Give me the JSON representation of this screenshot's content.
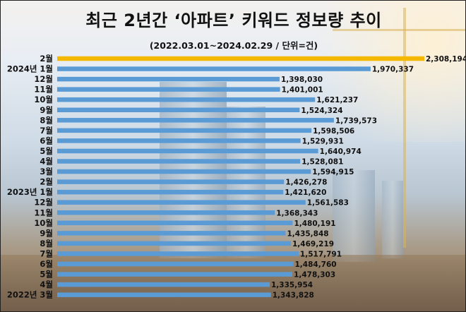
{
  "title": "최근 2년간 ‘아파트’ 키워드 정보량 추이",
  "subtitle": "(2022.03.01~2024.02.29 / 단위=건)",
  "colors": {
    "bar": "#5b9bd5",
    "highlight": "#f5b800"
  },
  "chart_data": {
    "type": "bar",
    "orientation": "horizontal",
    "title": "최근 2년간 ‘아파트’ 키워드 정보량 추이",
    "subtitle": "(2022.03.01~2024.02.29 / 단위=건)",
    "xlabel": "",
    "ylabel": "",
    "categories": [
      "2월",
      "2024년 1월",
      "12월",
      "11월",
      "10월",
      "9월",
      "8월",
      "7월",
      "6월",
      "5월",
      "4월",
      "3월",
      "2월",
      "2023년 1월",
      "12월",
      "11월",
      "10월",
      "9월",
      "8월",
      "7월",
      "6월",
      "5월",
      "4월",
      "2022년 3월"
    ],
    "values": [
      2308194,
      1970337,
      1398030,
      1401001,
      1621237,
      1524324,
      1739573,
      1598506,
      1529931,
      1640974,
      1528081,
      1594915,
      1426278,
      1421620,
      1561583,
      1368343,
      1480191,
      1435848,
      1469219,
      1517791,
      1484760,
      1478303,
      1335954,
      1343828
    ],
    "value_labels": [
      "2,308,194",
      "1,970,337",
      "1,398,030",
      "1,401,001",
      "1,621,237",
      "1,524,324",
      "1,739,573",
      "1,598,506",
      "1,529,931",
      "1,640,974",
      "1,528,081",
      "1,594,915",
      "1,426,278",
      "1,421,620",
      "1,561,583",
      "1,368,343",
      "1,480,191",
      "1,435,848",
      "1,469,219",
      "1,517,791",
      "1,484,760",
      "1,478,303",
      "1,335,954",
      "1,343,828"
    ],
    "highlight_index": 0,
    "xlim": [
      0,
      2308194
    ],
    "grid": false,
    "legend": "none"
  }
}
